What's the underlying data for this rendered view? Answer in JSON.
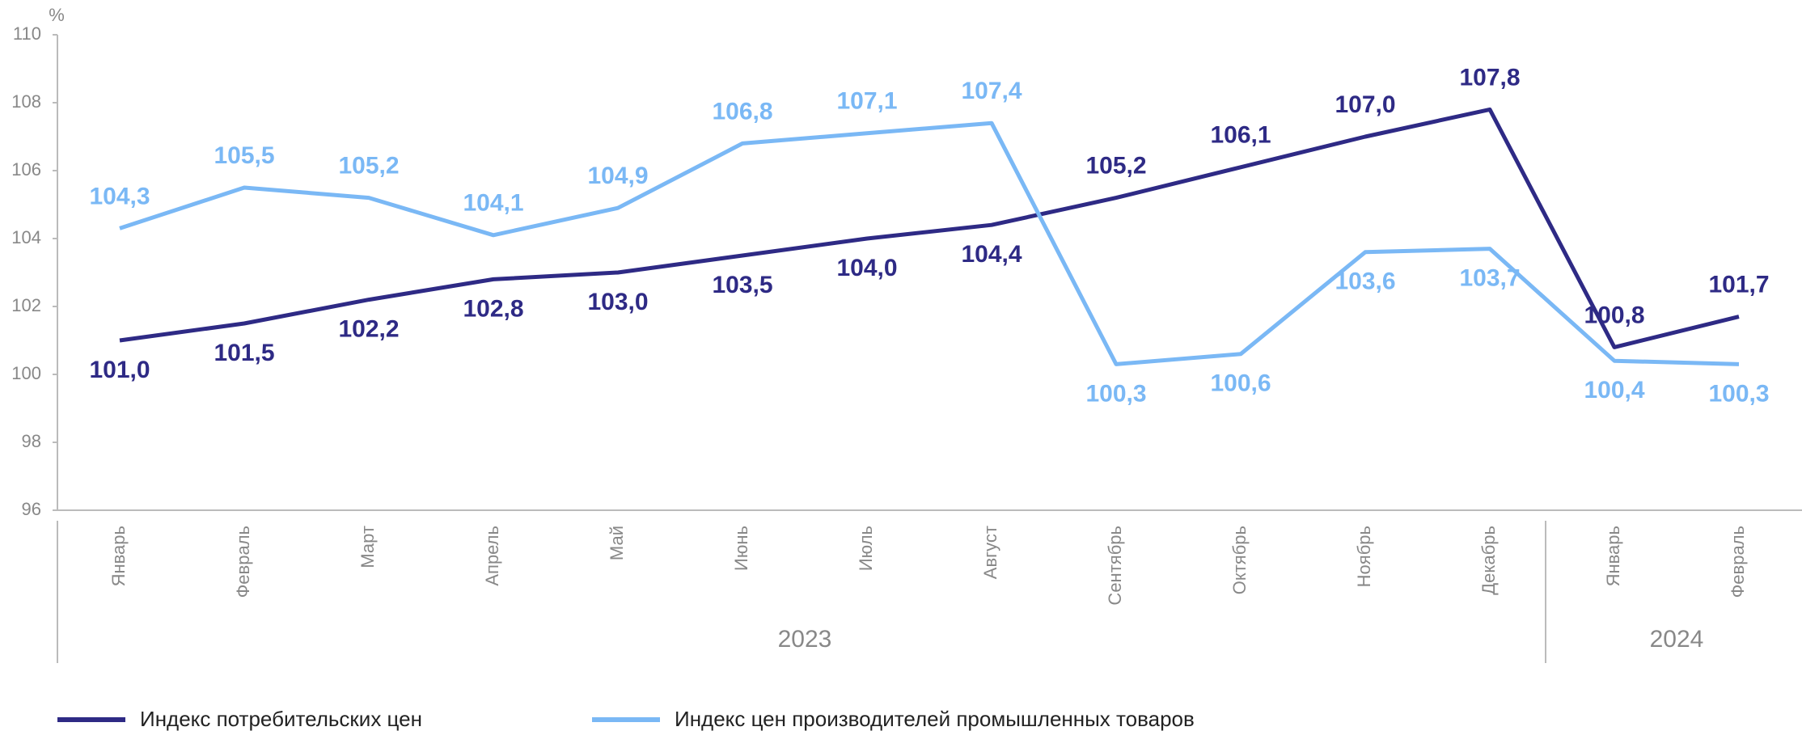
{
  "chart_data": {
    "type": "line",
    "y_unit_label": "%",
    "categories": [
      "Январь",
      "Февраль",
      "Март",
      "Апрель",
      "Май",
      "Июнь",
      "Июль",
      "Август",
      "Сентябрь",
      "Октябрь",
      "Ноябрь",
      "Декабрь",
      "Январь",
      "Февраль"
    ],
    "category_groups": [
      {
        "label": "2023",
        "span": 12
      },
      {
        "label": "2024",
        "span": 2
      }
    ],
    "ylim": [
      96,
      110
    ],
    "yticks": [
      96,
      98,
      100,
      102,
      104,
      106,
      108,
      110
    ],
    "grid": false,
    "legend": "bottom-left",
    "series": [
      {
        "name": "Индекс потребительских цен",
        "color": "#2e2a85",
        "values": [
          101.0,
          101.5,
          102.2,
          102.8,
          103.0,
          103.5,
          104.0,
          104.4,
          105.2,
          106.1,
          107.0,
          107.8,
          100.8,
          101.7
        ],
        "value_labels": [
          "101,0",
          "101,5",
          "102,2",
          "102,8",
          "103,0",
          "103,5",
          "104,0",
          "104,4",
          "105,2",
          "106,1",
          "107,0",
          "107,8",
          "100,8",
          "101,7"
        ]
      },
      {
        "name": "Индекс цен производителей промышленных товаров",
        "color": "#7ab8f5",
        "values": [
          104.3,
          105.5,
          105.2,
          104.1,
          104.9,
          106.8,
          107.1,
          107.4,
          100.3,
          100.6,
          103.6,
          103.7,
          100.4,
          100.3
        ],
        "value_labels": [
          "104,3",
          "105,5",
          "105,2",
          "104,1",
          "104,9",
          "106,8",
          "107,1",
          "107,4",
          "100,3",
          "100,6",
          "103,6",
          "103,7",
          "100,4",
          "100,3"
        ]
      }
    ]
  }
}
